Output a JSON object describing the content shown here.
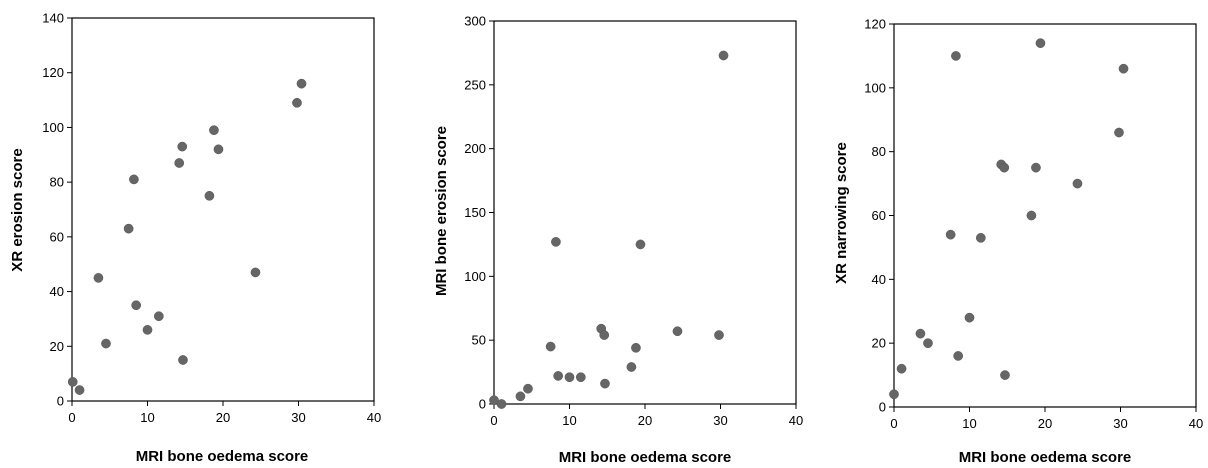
{
  "chart_data": [
    {
      "type": "scatter",
      "xlabel": "MRI bone oedema score",
      "ylabel": "XR erosion score",
      "xlim": [
        0,
        40
      ],
      "ylim": [
        0,
        140
      ],
      "xticks": [
        0,
        10,
        20,
        30,
        40
      ],
      "yticks": [
        0,
        20,
        40,
        60,
        80,
        100,
        120,
        140
      ],
      "marker_color": "#666666",
      "series": [
        {
          "x": [
            0.1,
            1,
            3.5,
            4.5,
            7.5,
            8.2,
            8.5,
            10,
            11.5,
            14.2,
            14.6,
            14.7,
            18.2,
            18.8,
            19.4,
            24.3,
            29.8,
            30.4
          ],
          "y": [
            7,
            4,
            45,
            21,
            63,
            81,
            35,
            26,
            31,
            87,
            93,
            15,
            75,
            99,
            92,
            47,
            109,
            116
          ]
        }
      ]
    },
    {
      "type": "scatter",
      "xlabel": "MRI bone oedema score",
      "ylabel": "MRI bone erosion score",
      "xlim": [
        0,
        40
      ],
      "ylim": [
        0,
        300
      ],
      "xticks": [
        0,
        10,
        20,
        30,
        40
      ],
      "yticks": [
        0,
        50,
        100,
        150,
        200,
        250,
        300
      ],
      "marker_color": "#666666",
      "series": [
        {
          "x": [
            0,
            1,
            3.5,
            4.5,
            7.5,
            8.2,
            8.5,
            10,
            11.5,
            14.2,
            14.6,
            14.7,
            18.2,
            18.8,
            19.4,
            24.3,
            29.8,
            30.4
          ],
          "y": [
            3,
            0,
            6,
            12,
            45,
            127,
            22,
            21,
            21,
            59,
            54,
            16,
            29,
            44,
            125,
            57,
            54,
            273
          ]
        }
      ]
    },
    {
      "type": "scatter",
      "xlabel": "MRI bone oedema score",
      "ylabel": "XR narrowing score",
      "xlim": [
        0,
        40
      ],
      "ylim": [
        0,
        120
      ],
      "xticks": [
        0,
        10,
        20,
        30,
        40
      ],
      "yticks": [
        0,
        20,
        40,
        60,
        80,
        100,
        120
      ],
      "marker_color": "#666666",
      "series": [
        {
          "x": [
            0,
            1,
            3.5,
            4.5,
            7.5,
            8.2,
            8.5,
            10,
            11.5,
            14.2,
            14.6,
            14.7,
            18.2,
            18.8,
            19.4,
            24.3,
            29.8,
            30.4
          ],
          "y": [
            4,
            12,
            23,
            20,
            54,
            110,
            16,
            28,
            53,
            76,
            75,
            10,
            60,
            75,
            114,
            70,
            86,
            106
          ]
        }
      ]
    }
  ]
}
